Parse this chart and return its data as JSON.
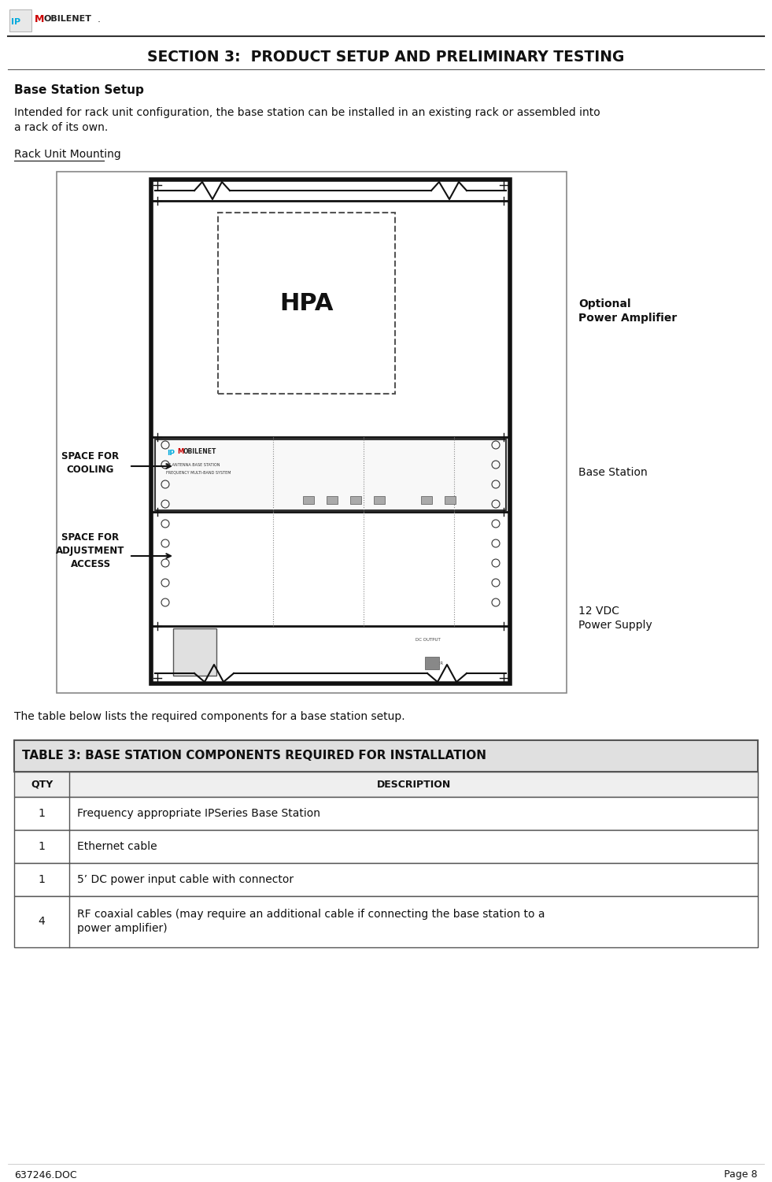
{
  "section_title": "SECTION 3:  PRODUCT SETUP AND PRELIMINARY TESTING",
  "subsection_title": "Base Station Setup",
  "body_text1": "Intended for rack unit configuration, the base station can be installed in an existing rack or assembled into",
  "body_text2": "a rack of its own.",
  "subsection2_title": "Rack Unit Mounting",
  "pre_table_text": "The table below lists the required components for a base station setup.",
  "table_title": "TABLE 3: BASE STATION COMPONENTS REQUIRED FOR INSTALLATION",
  "table_headers": [
    "QTY",
    "DESCRIPTION"
  ],
  "table_rows": [
    [
      "1",
      "Frequency appropriate IPSeries Base Station"
    ],
    [
      "1",
      "Ethernet cable"
    ],
    [
      "1",
      "5’ DC power input cable with connector"
    ],
    [
      "4",
      "RF coaxial cables (may require an additional cable if connecting the base station to a\npower amplifier)"
    ]
  ],
  "footer_left": "637246.DOC",
  "footer_right": "Page 8",
  "bg_color": "#ffffff"
}
